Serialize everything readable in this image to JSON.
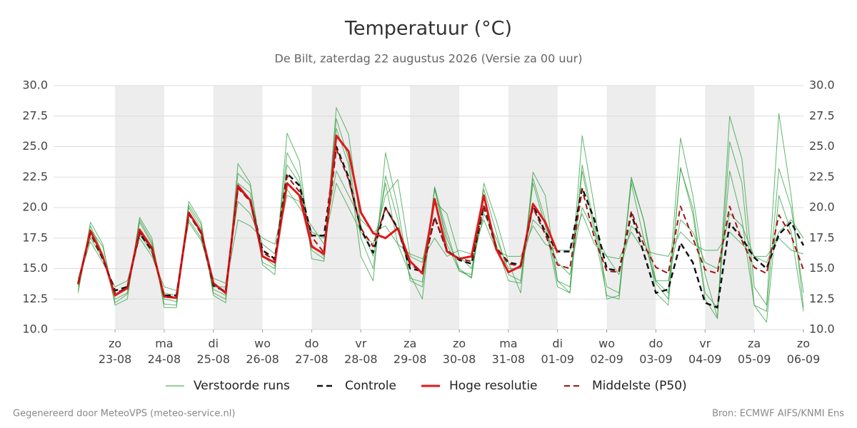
{
  "chart_data": {
    "type": "line",
    "title": "Temperatuur (°C)",
    "subtitle": "De Bilt, zaterdag 22 augustus 2026 (Versie za 00 uur)",
    "footer_left": "Gegenereerd door MeteoVPS (meteo-service.nl)",
    "footer_right": "Bron: ECMWF AIFS/KNMI Ens",
    "x": [
      0.25,
      0.5,
      0.75,
      1,
      1.25,
      1.5,
      1.75,
      2,
      2.25,
      2.5,
      2.75,
      3,
      3.25,
      3.5,
      3.75,
      4,
      4.25,
      4.5,
      4.75,
      5,
      5.25,
      5.5,
      5.75,
      6,
      6.25,
      6.5,
      6.75,
      7,
      7.25,
      7.5,
      7.75,
      8,
      8.25,
      8.5,
      8.75,
      9,
      9.25,
      9.5,
      9.75,
      10,
      10.25,
      10.5,
      10.75,
      11,
      11.25,
      11.5,
      11.75,
      12,
      12.25,
      12.5,
      12.75,
      13,
      13.25,
      13.5,
      13.75,
      14,
      14.25,
      14.5,
      14.75,
      15
    ],
    "xlim": [
      -0.25,
      15
    ],
    "xticks": [
      {
        "value": 1,
        "label": "zo 23-08"
      },
      {
        "value": 2,
        "label": "ma 24-08"
      },
      {
        "value": 3,
        "label": "di 25-08"
      },
      {
        "value": 4,
        "label": "wo 26-08"
      },
      {
        "value": 5,
        "label": "do 27-08"
      },
      {
        "value": 6,
        "label": "vr 28-08"
      },
      {
        "value": 7,
        "label": "za 29-08"
      },
      {
        "value": 8,
        "label": "zo 30-08"
      },
      {
        "value": 9,
        "label": "ma 31-08"
      },
      {
        "value": 10,
        "label": "di 01-09"
      },
      {
        "value": 11,
        "label": "wo 02-09"
      },
      {
        "value": 12,
        "label": "do 03-09"
      },
      {
        "value": 13,
        "label": "vr 04-09"
      },
      {
        "value": 14,
        "label": "za 05-09"
      },
      {
        "value": 15,
        "label": "zo 06-09"
      }
    ],
    "ylim": [
      10,
      30
    ],
    "yticks": [
      {
        "value": 10,
        "label": "10.0"
      },
      {
        "value": 12.5,
        "label": "12.5"
      },
      {
        "value": 15,
        "label": "15.0"
      },
      {
        "value": 17.5,
        "label": "17.5"
      },
      {
        "value": 20,
        "label": "20.0"
      },
      {
        "value": 22.5,
        "label": "22.5"
      },
      {
        "value": 25,
        "label": "25.0"
      },
      {
        "value": 27.5,
        "label": "27.5"
      },
      {
        "value": 30,
        "label": "30.0"
      }
    ],
    "grid": true,
    "ensemble": {
      "name": "Verstoorde runs",
      "color": "#2e9e3e",
      "runs": [
        [
          13.5,
          18.5,
          16.2,
          12.2,
          12.9,
          18.8,
          17.0,
          12.1,
          12.0,
          20.2,
          18.6,
          13.0,
          12.5,
          22.8,
          21.8,
          16.0,
          15.2,
          24.5,
          22.5,
          17.0,
          16.0,
          27.3,
          24.0,
          17.5,
          15.0,
          22.6,
          19.0,
          14.2,
          13.9,
          21.6,
          17.0,
          14.8,
          14.5,
          21.5,
          18.0,
          14.5,
          14.0,
          22.4,
          19.0,
          14.0,
          13.5,
          23.5,
          18.5,
          13.5,
          13.0,
          22.0,
          17.5,
          13.8,
          12.5,
          23.2,
          20.0,
          13.0,
          11.8,
          23.0,
          19.0,
          12.0,
          11.5,
          23.2,
          20.0,
          13.0
        ],
        [
          14.0,
          17.2,
          15.5,
          13.5,
          14.0,
          17.5,
          16.0,
          13.5,
          13.2,
          18.8,
          17.3,
          14.2,
          13.8,
          20.5,
          19.5,
          17.0,
          16.2,
          21.0,
          20.5,
          18.0,
          17.5,
          23.0,
          21.0,
          19.0,
          18.0,
          18.5,
          17.0,
          16.2,
          15.8,
          17.5,
          16.0,
          16.5,
          16.2,
          19.0,
          16.5,
          16.0,
          16.0,
          18.5,
          17.0,
          16.5,
          16.5,
          19.5,
          17.0,
          16.0,
          15.8,
          18.0,
          16.5,
          16.2,
          16.0,
          18.0,
          17.0,
          16.5,
          16.5,
          18.0,
          17.0,
          16.0,
          16.0,
          17.5,
          16.5,
          16.2
        ],
        [
          13.2,
          18.2,
          16.8,
          12.5,
          13.0,
          19.0,
          17.2,
          12.5,
          12.3,
          20.0,
          18.3,
          13.3,
          12.8,
          22.0,
          21.2,
          15.5,
          15.0,
          23.5,
          22.0,
          16.5,
          15.8,
          26.5,
          23.5,
          16.0,
          14.0,
          24.5,
          20.0,
          14.0,
          13.5,
          21.5,
          17.5,
          15.0,
          14.2,
          21.0,
          17.0,
          14.0,
          13.8,
          22.0,
          18.5,
          13.5,
          13.0,
          23.0,
          18.0,
          12.8,
          12.5,
          22.5,
          19.0,
          14.0,
          13.0,
          25.7,
          21.0,
          14.5,
          11.0,
          27.5,
          24.0,
          13.5,
          12.0,
          27.7,
          21.0,
          11.8
        ],
        [
          14.2,
          17.5,
          15.8,
          13.0,
          13.3,
          17.8,
          16.3,
          13.0,
          12.8,
          19.0,
          17.5,
          13.5,
          13.5,
          19.0,
          18.5,
          17.5,
          17.0,
          21.5,
          20.0,
          18.5,
          17.0,
          22.0,
          20.0,
          18.0,
          17.0,
          21.0,
          22.3,
          16.0,
          15.5,
          20.5,
          19.5,
          16.0,
          15.0,
          19.5,
          17.5,
          15.0,
          15.0,
          19.0,
          18.0,
          15.5,
          14.5,
          20.0,
          18.0,
          16.0,
          14.5,
          18.5,
          17.5,
          14.0,
          14.0,
          19.0,
          18.0,
          15.5,
          15.0,
          19.5,
          18.5,
          16.0,
          15.5,
          18.0,
          19.0,
          17.5
        ],
        [
          13.0,
          18.8,
          17.0,
          12.0,
          12.5,
          19.2,
          17.5,
          11.8,
          11.8,
          20.5,
          18.8,
          12.8,
          12.2,
          23.6,
          22.0,
          15.3,
          14.5,
          26.1,
          23.8,
          15.8,
          15.6,
          28.2,
          26.0,
          18.5,
          16.0,
          22.0,
          17.0,
          14.5,
          12.5,
          21.7,
          18.0,
          14.8,
          14.3,
          22.0,
          19.0,
          15.5,
          13.0,
          22.9,
          21.0,
          14.0,
          13.0,
          25.9,
          20.0,
          12.5,
          12.8,
          22.3,
          19.0,
          13.0,
          12.0,
          23.3,
          19.5,
          12.5,
          10.9,
          25.4,
          22.0,
          12.0,
          10.6,
          21.0,
          18.0,
          11.5
        ]
      ]
    },
    "series": [
      {
        "name": "Controle",
        "color": "#111111",
        "dashed": true,
        "width": 2.5,
        "values": [
          13.8,
          17.9,
          15.8,
          13.2,
          13.5,
          17.9,
          16.5,
          12.8,
          12.8,
          19.5,
          17.9,
          13.6,
          13.1,
          21.7,
          20.6,
          16.5,
          15.8,
          22.8,
          21.8,
          17.7,
          17.7,
          25.0,
          22.5,
          18.2,
          16.3,
          20.0,
          18.3,
          15.0,
          14.8,
          19.2,
          16.5,
          15.7,
          15.4,
          20.1,
          16.7,
          15.5,
          15.3,
          20.2,
          18.0,
          16.4,
          16.4,
          21.6,
          19.0,
          15.0,
          14.8,
          19.5,
          16.3,
          13.0,
          13.3,
          17.1,
          15.5,
          12.2,
          11.8,
          18.7,
          17.5,
          15.9,
          15.0,
          17.8,
          18.8,
          16.9
        ]
      },
      {
        "name": "Hoge resolutie",
        "color": "#e0191b",
        "dashed": false,
        "width": 3,
        "values": [
          13.7,
          18.1,
          16.0,
          12.8,
          13.4,
          18.2,
          16.7,
          12.7,
          12.6,
          19.6,
          18.0,
          13.8,
          13.0,
          21.8,
          20.6,
          16.0,
          15.5,
          22.0,
          21.0,
          16.8,
          16.2,
          25.9,
          24.6,
          19.6,
          17.9,
          17.5,
          18.3,
          15.6,
          14.6,
          20.7,
          16.4,
          15.8,
          16.0,
          21.0,
          16.6,
          14.7,
          15.2,
          20.3,
          18.8,
          16.3,
          null,
          null,
          null,
          null,
          null,
          null,
          null,
          null,
          null,
          null,
          null,
          null,
          null,
          null,
          null,
          null,
          null,
          null,
          null,
          null
        ]
      },
      {
        "name": "Middelste (P50)",
        "color": "#a01414",
        "dashed": true,
        "width": 2,
        "values": [
          13.8,
          17.9,
          15.9,
          13.0,
          13.4,
          18.0,
          16.6,
          12.7,
          12.7,
          19.5,
          17.9,
          13.7,
          13.1,
          21.6,
          20.5,
          16.3,
          15.7,
          22.6,
          21.3,
          17.6,
          16.3,
          24.8,
          22.3,
          18.3,
          16.8,
          20.0,
          18.2,
          15.3,
          14.8,
          19.2,
          16.5,
          15.8,
          15.6,
          20.2,
          16.8,
          15.4,
          15.2,
          20.0,
          17.8,
          15.3,
          15.0,
          21.5,
          17.5,
          14.8,
          14.7,
          19.7,
          17.0,
          15.1,
          14.6,
          20.1,
          17.5,
          14.9,
          14.6,
          20.1,
          17.3,
          15.1,
          14.6,
          19.4,
          17.7,
          14.9
        ]
      }
    ]
  }
}
